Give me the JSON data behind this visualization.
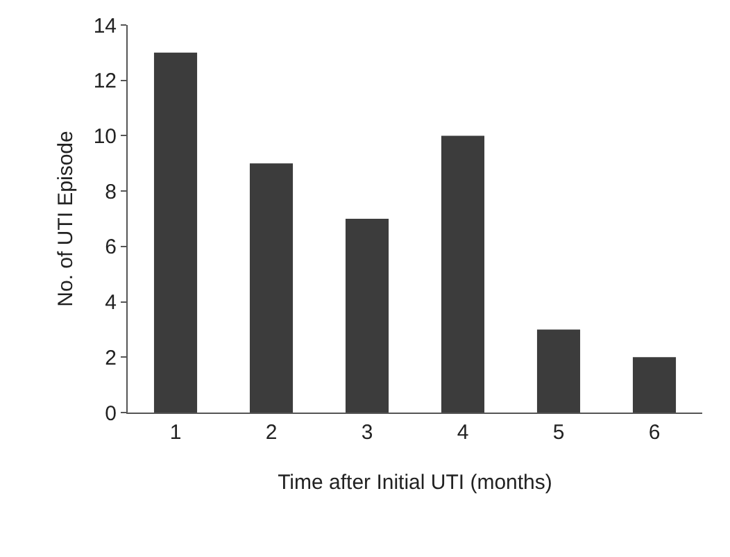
{
  "chart_data": {
    "type": "bar",
    "xlabel": "Time after Initial UTI (months)",
    "ylabel": "No. of UTI Episode",
    "categories": [
      "1",
      "2",
      "3",
      "4",
      "5",
      "6"
    ],
    "values": [
      13,
      9,
      7,
      10,
      3,
      2
    ],
    "color": "#3c3c3c",
    "ylim": [
      0,
      14
    ],
    "yticks": [
      0,
      2,
      4,
      6,
      8,
      10,
      12,
      14
    ],
    "grid": false,
    "legend": false
  }
}
